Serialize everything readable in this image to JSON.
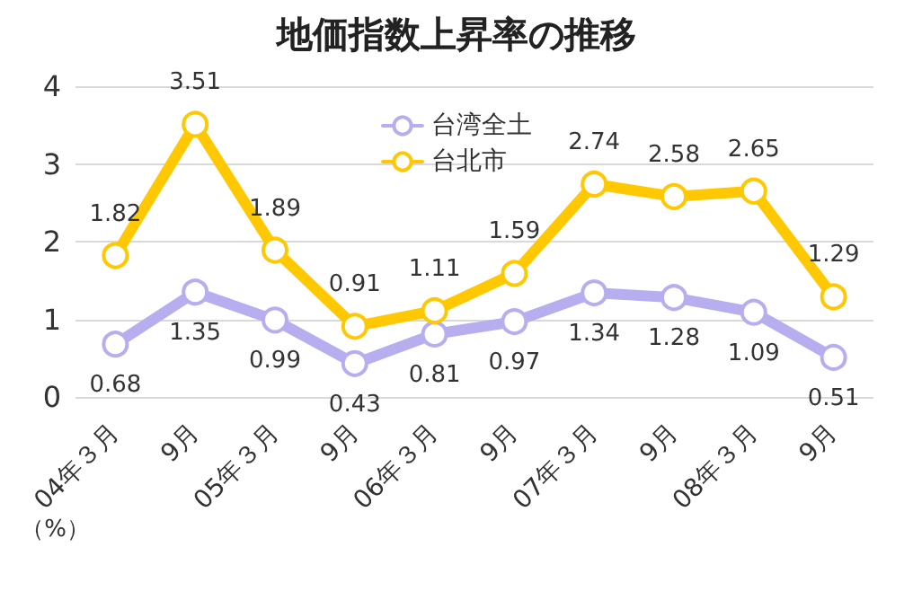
{
  "chart_data": {
    "type": "line",
    "title": "地価指数上昇率の推移",
    "ylabel": "（%）",
    "categories": [
      "04年３月",
      "9月",
      "05年３月",
      "9月",
      "06年３月",
      "9月",
      "07年３月",
      "9月",
      "08年３月",
      "9月"
    ],
    "series": [
      {
        "name": "台湾全土",
        "color": "#b7aef0",
        "values": [
          0.68,
          1.35,
          0.99,
          0.43,
          0.81,
          0.97,
          1.34,
          1.28,
          1.09,
          0.51
        ]
      },
      {
        "name": "台北市",
        "color": "#ffc800",
        "values": [
          1.82,
          3.51,
          1.89,
          0.91,
          1.11,
          1.59,
          2.74,
          2.58,
          2.65,
          1.29
        ]
      }
    ],
    "ylim": [
      0,
      4
    ],
    "yticks": [
      0,
      1,
      2,
      3,
      4
    ],
    "grid": "y",
    "legend": "top",
    "marker": "circle",
    "line_style": "solid",
    "data_labels": true
  }
}
